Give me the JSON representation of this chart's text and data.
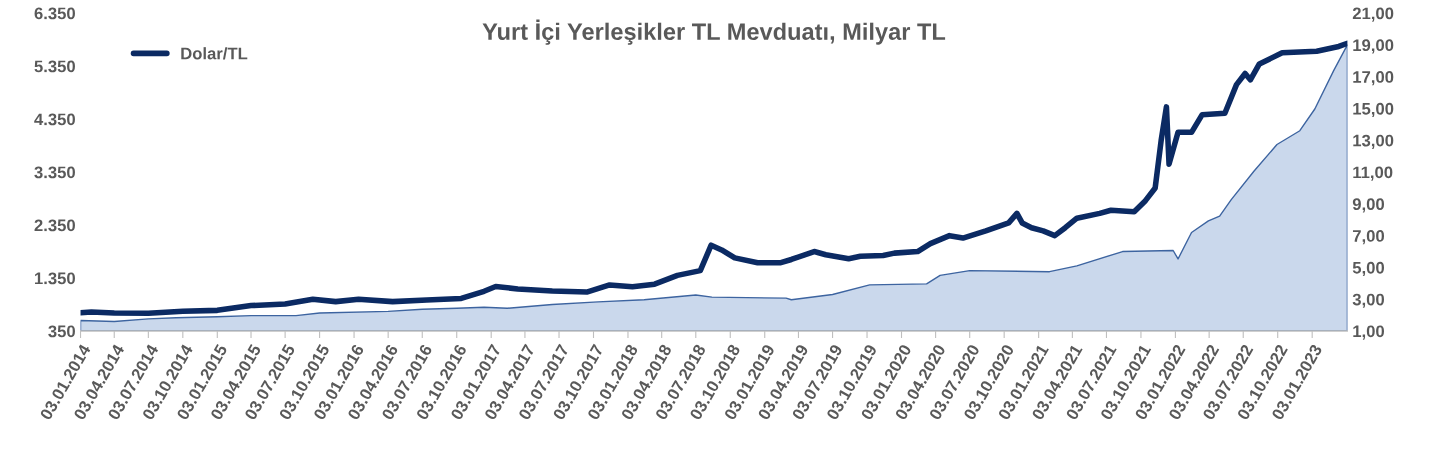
{
  "chart_data": {
    "type": "area",
    "title": "Yurt İçi Yerleşikler TL Mevduatı, Milyar TL",
    "legend": "top left",
    "grid": false,
    "xlim": [
      "2014-01-03",
      "2023-04-07"
    ],
    "xticks": [
      {
        "value": "2014-01-03",
        "label": "03.01.2014"
      },
      {
        "value": "2014-04-03",
        "label": "03.04.2014"
      },
      {
        "value": "2014-07-03",
        "label": "03.07.2014"
      },
      {
        "value": "2014-10-03",
        "label": "03.10.2014"
      },
      {
        "value": "2015-01-03",
        "label": "03.01.2015"
      },
      {
        "value": "2015-04-03",
        "label": "03.04.2015"
      },
      {
        "value": "2015-07-03",
        "label": "03.07.2015"
      },
      {
        "value": "2015-10-03",
        "label": "03.10.2015"
      },
      {
        "value": "2016-01-03",
        "label": "03.01.2016"
      },
      {
        "value": "2016-04-03",
        "label": "03.04.2016"
      },
      {
        "value": "2016-07-03",
        "label": "03.07.2016"
      },
      {
        "value": "2016-10-03",
        "label": "03.10.2016"
      },
      {
        "value": "2017-01-03",
        "label": "03.01.2017"
      },
      {
        "value": "2017-04-03",
        "label": "03.04.2017"
      },
      {
        "value": "2017-07-03",
        "label": "03.07.2017"
      },
      {
        "value": "2017-10-03",
        "label": "03.10.2017"
      },
      {
        "value": "2018-01-03",
        "label": "03.01.2018"
      },
      {
        "value": "2018-04-03",
        "label": "03.04.2018"
      },
      {
        "value": "2018-07-03",
        "label": "03.07.2018"
      },
      {
        "value": "2018-10-03",
        "label": "03.10.2018"
      },
      {
        "value": "2019-01-03",
        "label": "03.01.2019"
      },
      {
        "value": "2019-04-03",
        "label": "03.04.2019"
      },
      {
        "value": "2019-07-03",
        "label": "03.07.2019"
      },
      {
        "value": "2019-10-03",
        "label": "03.10.2019"
      },
      {
        "value": "2020-01-03",
        "label": "03.01.2020"
      },
      {
        "value": "2020-04-03",
        "label": "03.04.2020"
      },
      {
        "value": "2020-07-03",
        "label": "03.07.2020"
      },
      {
        "value": "2020-10-03",
        "label": "03.10.2020"
      },
      {
        "value": "2021-01-03",
        "label": "03.01.2021"
      },
      {
        "value": "2021-04-03",
        "label": "03.04.2021"
      },
      {
        "value": "2021-07-03",
        "label": "03.07.2021"
      },
      {
        "value": "2021-10-03",
        "label": "03.10.2021"
      },
      {
        "value": "2022-01-03",
        "label": "03.01.2022"
      },
      {
        "value": "2022-04-03",
        "label": "03.04.2022"
      },
      {
        "value": "2022-07-03",
        "label": "03.07.2022"
      },
      {
        "value": "2022-10-03",
        "label": "03.10.2022"
      },
      {
        "value": "2023-01-03",
        "label": "03.01.2023"
      }
    ],
    "ylim": [
      350,
      6350
    ],
    "yticks": [
      350,
      {
        "value": 1350,
        "label": "1.350"
      },
      {
        "value": 2350,
        "label": "2.350"
      },
      {
        "value": 3350,
        "label": "3.350"
      },
      {
        "value": 4350,
        "label": "4.350"
      },
      {
        "value": 5350,
        "label": "5.350"
      },
      {
        "value": 6350,
        "label": "6.350"
      }
    ],
    "y2lim": [
      1,
      21
    ],
    "y2ticks": [
      {
        "value": 1,
        "label": "1,00"
      },
      {
        "value": 3,
        "label": "3,00"
      },
      {
        "value": 5,
        "label": "5,00"
      },
      {
        "value": 7,
        "label": "7,00"
      },
      {
        "value": 9,
        "label": "9,00"
      },
      {
        "value": 11,
        "label": "11,00"
      },
      {
        "value": 13,
        "label": "13,00"
      },
      {
        "value": 15,
        "label": "15,00"
      },
      {
        "value": 17,
        "label": "17,00"
      },
      {
        "value": 19,
        "label": "19,00"
      },
      {
        "value": 21,
        "label": "21,00"
      }
    ],
    "series": [
      {
        "color": "#cad8ec",
        "x": [
          "2014-01-03",
          "2014-04-03",
          "2014-07-03",
          "2014-09-15",
          "2015-01-03",
          "2015-04-03",
          "2015-08-01",
          "2015-10-03",
          "2016-04-03",
          "2016-07-03",
          "2016-10-03",
          "2016-12-15",
          "2017-02-15",
          "2017-06-15",
          "2017-10-15",
          "2018-02-15",
          "2018-07-03",
          "2018-08-15",
          "2019-03-01",
          "2019-03-15",
          "2019-07-03",
          "2019-10-10",
          "2020-03-10",
          "2020-04-15",
          "2020-07-03",
          "2021-02-01",
          "2021-04-15",
          "2021-08-15",
          "2021-12-28",
          "2022-01-10",
          "2022-02-15",
          "2022-04-01",
          "2022-05-01",
          "2022-06-01",
          "2022-08-01",
          "2022-10-01",
          "2022-12-01",
          "2023-01-10",
          "2023-03-01",
          "2023-04-07"
        ],
        "values": [
          550,
          530,
          580,
          600,
          620,
          640,
          640,
          690,
          720,
          760,
          780,
          800,
          780,
          850,
          900,
          940,
          1030,
          990,
          970,
          940,
          1040,
          1220,
          1240,
          1400,
          1490,
          1470,
          1580,
          1850,
          1870,
          1710,
          2210,
          2430,
          2520,
          2830,
          3370,
          3870,
          4130,
          4540,
          5260,
          5750
        ]
      },
      {
        "type": "line",
        "name": "Dolar/TL",
        "axis": "y2",
        "color": "#0b2a63",
        "x": [
          "2014-01-03",
          "2014-02-01",
          "2014-04-03",
          "2014-07-03",
          "2014-10-03",
          "2015-01-03",
          "2015-04-03",
          "2015-07-03",
          "2015-09-15",
          "2015-11-15",
          "2016-01-15",
          "2016-04-15",
          "2016-07-15",
          "2016-10-15",
          "2016-12-15",
          "2017-01-15",
          "2017-03-15",
          "2017-06-15",
          "2017-09-15",
          "2017-11-15",
          "2018-01-15",
          "2018-03-15",
          "2018-05-15",
          "2018-07-15",
          "2018-08-13",
          "2018-09-10",
          "2018-10-15",
          "2018-12-15",
          "2019-02-15",
          "2019-03-15",
          "2019-05-15",
          "2019-06-15",
          "2019-08-15",
          "2019-09-15",
          "2019-11-15",
          "2019-12-15",
          "2020-02-15",
          "2020-03-20",
          "2020-05-10",
          "2020-06-15",
          "2020-08-15",
          "2020-10-15",
          "2020-11-06",
          "2020-11-20",
          "2020-12-15",
          "2021-01-15",
          "2021-02-15",
          "2021-03-15",
          "2021-04-15",
          "2021-06-15",
          "2021-07-15",
          "2021-09-15",
          "2021-10-15",
          "2021-11-10",
          "2021-11-26",
          "2021-12-10",
          "2021-12-17",
          "2022-01-10",
          "2022-02-15",
          "2022-03-15",
          "2022-05-15",
          "2022-06-15",
          "2022-07-08",
          "2022-07-22",
          "2022-08-15",
          "2022-10-15",
          "2023-01-15",
          "2023-03-15",
          "2023-04-07"
        ],
        "values": [
          2.15,
          2.2,
          2.13,
          2.12,
          2.25,
          2.3,
          2.6,
          2.7,
          3.0,
          2.85,
          3.0,
          2.85,
          2.95,
          3.05,
          3.5,
          3.8,
          3.65,
          3.52,
          3.45,
          3.9,
          3.78,
          3.95,
          4.5,
          4.8,
          6.4,
          6.1,
          5.6,
          5.3,
          5.3,
          5.5,
          6.0,
          5.8,
          5.55,
          5.7,
          5.75,
          5.9,
          6.0,
          6.5,
          7.0,
          6.85,
          7.3,
          7.8,
          8.4,
          7.8,
          7.5,
          7.3,
          7.0,
          7.5,
          8.1,
          8.4,
          8.6,
          8.5,
          9.2,
          10.0,
          13.0,
          15.1,
          11.5,
          13.5,
          13.5,
          14.6,
          14.7,
          16.5,
          17.2,
          16.8,
          17.8,
          18.5,
          18.6,
          18.9,
          19.1
        ]
      }
    ]
  }
}
